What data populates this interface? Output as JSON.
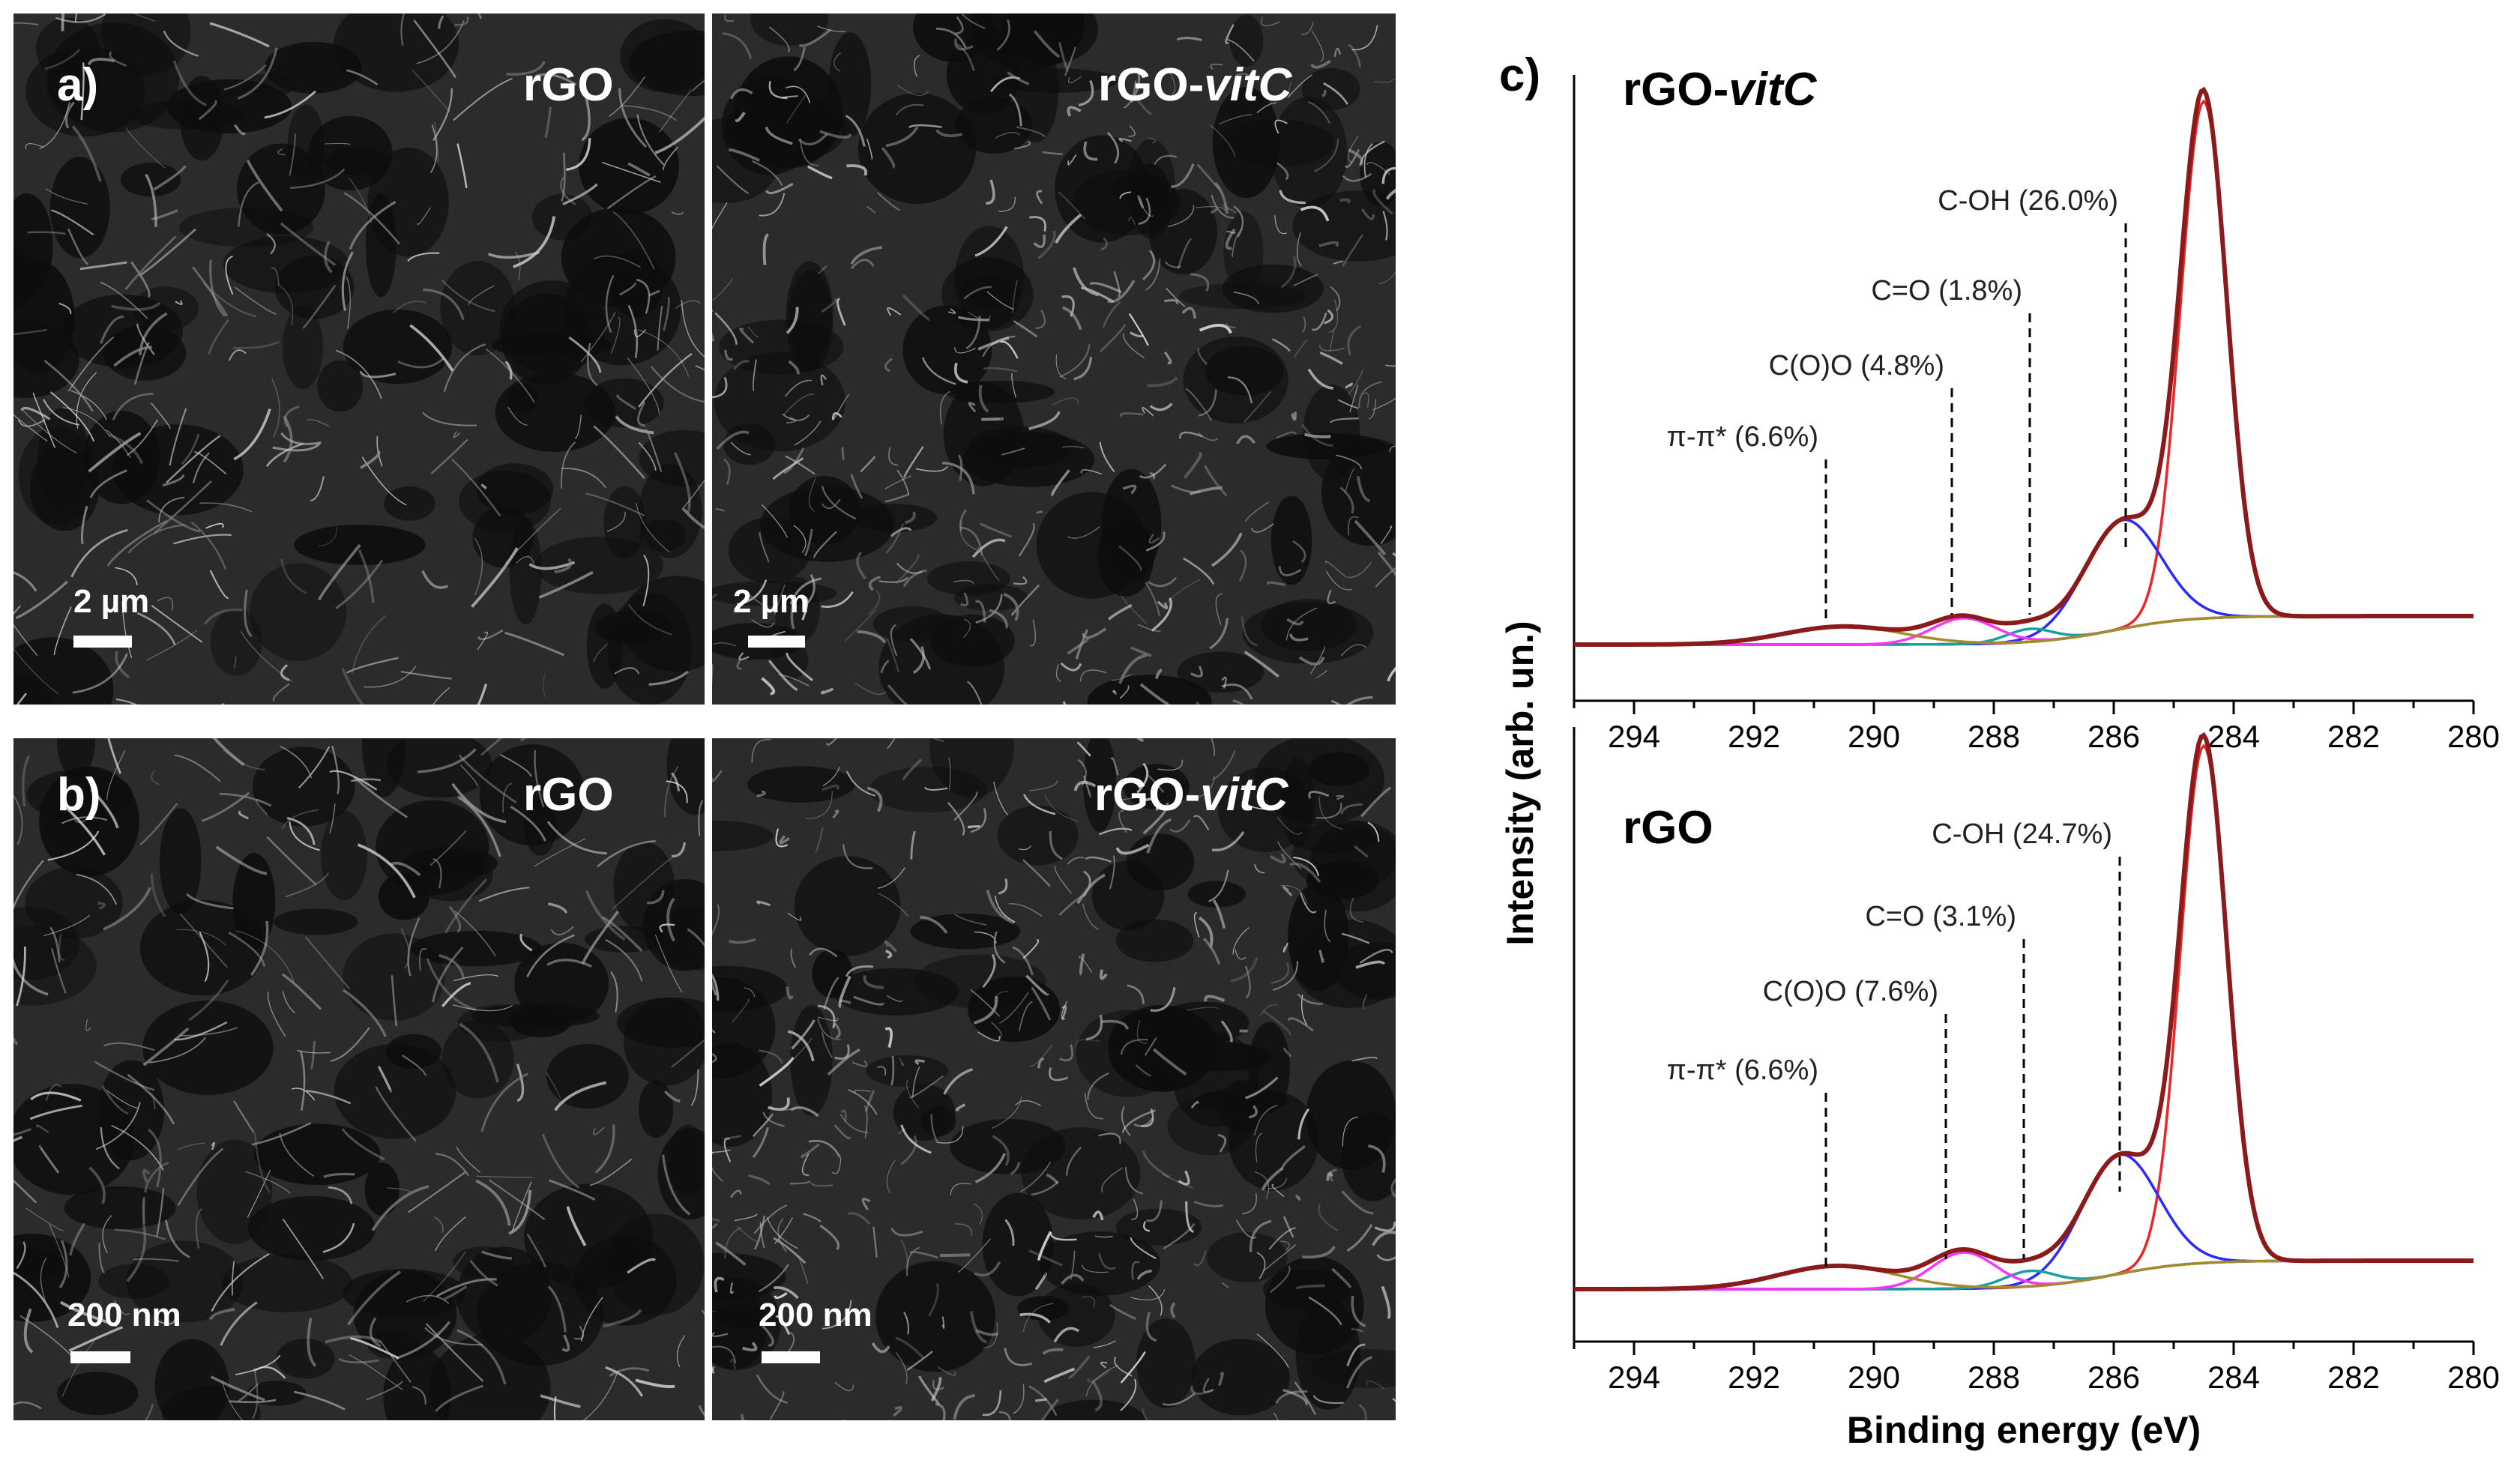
{
  "figure": {
    "panel_a": {
      "label": "a)",
      "left": {
        "sample": "rGO",
        "scale": "2 µm"
      },
      "right": {
        "sample_main": "rGO-",
        "sample_italic": "vitC",
        "scale": "2 µm"
      }
    },
    "panel_b": {
      "label": "b)",
      "left": {
        "sample": "rGO",
        "scale": "200 nm"
      },
      "right": {
        "sample_main": "rGO-",
        "sample_italic": "vitC",
        "scale": "200 nm"
      }
    },
    "panel_c": {
      "label": "c)"
    }
  },
  "chart_data": [
    {
      "type": "line",
      "title_main": "rGO-",
      "title_italic": "vitC",
      "xlabel": "",
      "ylabel": "Intensity (arb. un.)",
      "xlim": [
        295,
        280
      ],
      "x_ticks": [
        294,
        292,
        290,
        288,
        286,
        284,
        282,
        280
      ],
      "peaks": [
        {
          "label": "C-OH (26.0%)",
          "position": 285.8
        },
        {
          "label": "C=O (1.8%)",
          "position": 287.4
        },
        {
          "label": "C(O)O (4.8%)",
          "position": 288.7
        },
        {
          "label": "π-π* (6.6%)",
          "position": 290.8
        }
      ],
      "components": [
        {
          "color": "#e8262a",
          "center": 284.5,
          "amplitude": 1.0,
          "width": 0.55
        },
        {
          "color": "#2a2aff",
          "center": 285.85,
          "amplitude": 0.21,
          "width": 0.9
        },
        {
          "color": "#18a0a0",
          "center": 287.4,
          "amplitude": 0.025,
          "width": 0.55
        },
        {
          "color": "#ff33ff",
          "center": 288.5,
          "amplitude": 0.05,
          "width": 0.75
        },
        {
          "color": "#a38c2a",
          "center": 290.5,
          "amplitude": 0.035,
          "width": 1.4
        }
      ]
    },
    {
      "type": "line",
      "title_main": "rGO",
      "title_italic": "",
      "xlabel": "Binding energy (eV)",
      "ylabel": "",
      "xlim": [
        295,
        280
      ],
      "x_ticks": [
        294,
        292,
        290,
        288,
        286,
        284,
        282,
        280
      ],
      "peaks": [
        {
          "label": "C-OH (24.7%)",
          "position": 285.9
        },
        {
          "label": "C=O (3.1%)",
          "position": 287.5
        },
        {
          "label": "C(O)O (7.6%)",
          "position": 288.8
        },
        {
          "label": "π-π* (6.6%)",
          "position": 290.8
        }
      ],
      "components": [
        {
          "color": "#e8262a",
          "center": 284.5,
          "amplitude": 1.0,
          "width": 0.55
        },
        {
          "color": "#2a2aff",
          "center": 285.9,
          "amplitude": 0.23,
          "width": 0.9
        },
        {
          "color": "#18a0a0",
          "center": 287.4,
          "amplitude": 0.03,
          "width": 0.6
        },
        {
          "color": "#ff33ff",
          "center": 288.5,
          "amplitude": 0.07,
          "width": 0.75
        },
        {
          "color": "#a38c2a",
          "center": 290.6,
          "amplitude": 0.045,
          "width": 1.4
        }
      ]
    }
  ]
}
